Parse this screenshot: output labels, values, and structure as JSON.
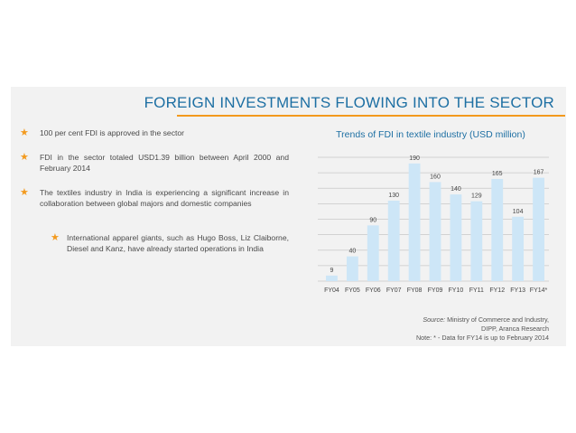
{
  "title": "FOREIGN INVESTMENTS FLOWING INTO THE SECTOR",
  "bullets": [
    {
      "text": "100 per cent FDI is approved in the sector"
    },
    {
      "text": "FDI in the sector totaled USD1.39 billion between April 2000 and February 2014"
    },
    {
      "text": "The textiles industry in India is experiencing a significant increase in collaboration between global majors and domestic companies"
    },
    {
      "text": "International apparel giants, such as Hugo Boss, Liz Claiborne, Diesel and Kanz, have already started operations in India"
    }
  ],
  "chart_data": {
    "type": "bar",
    "title": "Trends of FDI in textile industry (USD million)",
    "categories": [
      "FY04",
      "FY05",
      "FY06",
      "FY07",
      "FY08",
      "FY09",
      "FY10",
      "FY11",
      "FY12",
      "FY13",
      "FY14*"
    ],
    "values": [
      9,
      40,
      90,
      130,
      190,
      160,
      140,
      129,
      165,
      104,
      167
    ],
    "ylim": [
      0,
      200
    ],
    "grid": true,
    "bar_color": "#cde6f7"
  },
  "source": {
    "label": "Source:",
    "line1": "Ministry of Commerce and Industry,",
    "line2": "DIPP, Aranca Research",
    "note": "Note: * - Data for FY14 is up to February 2014"
  },
  "colors": {
    "accent": "#f39a1e",
    "title": "#1d6fa3",
    "panel": "#f2f2f2"
  }
}
